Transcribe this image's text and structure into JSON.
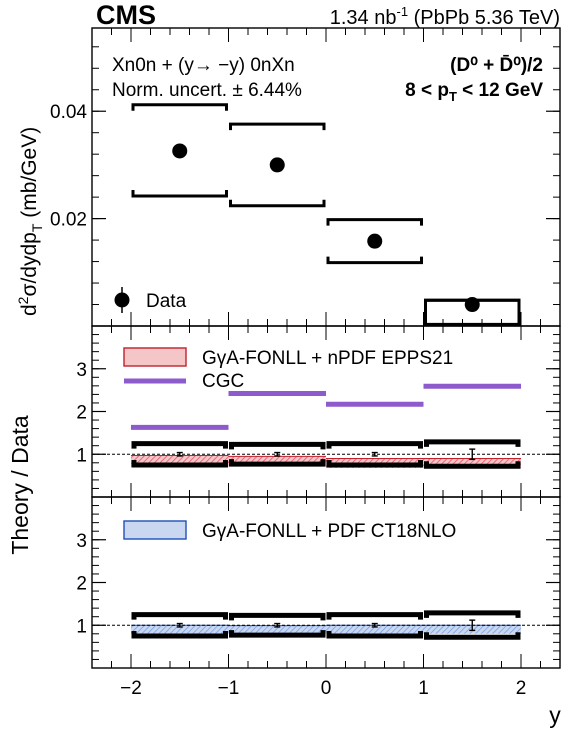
{
  "header": {
    "experiment": "CMS",
    "lumi": "1.34 nb",
    "lumi_exp": "-1",
    "system": " (PbPb 5.36 TeV)"
  },
  "labels": {
    "process": "Xn0n + (y→ −y) 0nXn",
    "norm_uncert": "Norm. uncert. ± 6.44%",
    "species": "(D⁰ + D̄⁰)/2",
    "pt_range_pre": "8 < p",
    "pt_range_sub": "T",
    "pt_range_post": " < 12 GeV",
    "data_legend": "Data",
    "theory_data": "Theory / Data",
    "xlabel": "y",
    "ylabel_top": "d²σ/dydp_T (mb/GeV)"
  },
  "colors": {
    "epps21_fill": "#f4c6c8",
    "epps21_line": "#c0212b",
    "epps21_hatch": "#e8506a",
    "cgc_line": "#8e5bcc",
    "ct18_fill": "#c9d7f0",
    "ct18_line": "#1f4fb8",
    "ct18_hatch": "#6f99e0"
  },
  "chart_data": [
    {
      "type": "scatter",
      "panel": "top",
      "xlim": [
        -2.4,
        2.4
      ],
      "ylim": [
        0,
        0.0555
      ],
      "yticks": [
        0.02,
        0.04
      ],
      "ytick_labels": [
        "0.02",
        "0.04"
      ],
      "xlabel": "y",
      "ylabel": "d²σ/dydp_T (mb/GeV)",
      "series": [
        {
          "name": "Data",
          "bins": [
            [
              -2,
              -1
            ],
            [
              -1,
              0
            ],
            [
              0,
              1
            ],
            [
              1,
              2
            ]
          ],
          "x": [
            -1.5,
            -0.5,
            0.5,
            1.5
          ],
          "y": [
            0.0326,
            0.03,
            0.0158,
            0.004
          ],
          "syst_low": [
            0.0242,
            0.0224,
            0.0118,
            0.0003
          ],
          "syst_high": [
            0.0412,
            0.0376,
            0.0198,
            0.0048
          ]
        }
      ]
    },
    {
      "type": "line",
      "panel": "middle",
      "xlim": [
        -2.4,
        2.4
      ],
      "ylim": [
        0,
        4.0
      ],
      "yticks": [
        1,
        2,
        3
      ],
      "ytick_labels": [
        "1",
        "2",
        "3"
      ],
      "ylabel": "Theory / Data",
      "bins": [
        [
          -2,
          -1
        ],
        [
          -1,
          0
        ],
        [
          0,
          1
        ],
        [
          1,
          2
        ]
      ],
      "series": [
        {
          "name": "GγA-FONLL + nPDF EPPS21",
          "kind": "band",
          "low": [
            0.7,
            0.72,
            0.68,
            0.67
          ],
          "high": [
            0.97,
            0.95,
            0.9,
            0.9
          ]
        },
        {
          "name": "CGC",
          "kind": "line",
          "values": [
            1.63,
            2.42,
            2.17,
            2.59
          ]
        },
        {
          "name": "Data uncertainty",
          "kind": "frame",
          "low": [
            0.75,
            0.77,
            0.75,
            0.72
          ],
          "high": [
            1.25,
            1.23,
            1.25,
            1.29
          ]
        },
        {
          "name": "Data stat",
          "kind": "errorbar",
          "x": [
            -1.5,
            -0.5,
            0.5,
            1.5
          ],
          "y": [
            1,
            1,
            1,
            1
          ],
          "err": [
            0.04,
            0.04,
            0.04,
            0.12
          ]
        }
      ]
    },
    {
      "type": "line",
      "panel": "bottom",
      "xlim": [
        -2.4,
        2.4
      ],
      "ylim": [
        0,
        4.0
      ],
      "yticks": [
        1,
        2,
        3
      ],
      "ytick_labels": [
        "1",
        "2",
        "3"
      ],
      "xticks": [
        -2,
        -1,
        0,
        1,
        2
      ],
      "xtick_labels": [
        "−2",
        "−1",
        "0",
        "1",
        "2"
      ],
      "bins": [
        [
          -2,
          -1
        ],
        [
          -1,
          0
        ],
        [
          0,
          1
        ],
        [
          1,
          2
        ]
      ],
      "series": [
        {
          "name": "GγA-FONLL + PDF CT18NLO",
          "kind": "band",
          "low": [
            0.8,
            0.79,
            0.8,
            0.8
          ],
          "high": [
            1.0,
            0.99,
            1.0,
            1.0
          ]
        },
        {
          "name": "Data uncertainty",
          "kind": "frame",
          "low": [
            0.75,
            0.77,
            0.75,
            0.72
          ],
          "high": [
            1.25,
            1.23,
            1.25,
            1.29
          ]
        },
        {
          "name": "Data stat",
          "kind": "errorbar",
          "x": [
            -1.5,
            -0.5,
            0.5,
            1.5
          ],
          "y": [
            1,
            1,
            1,
            1
          ],
          "err": [
            0.04,
            0.04,
            0.04,
            0.12
          ]
        }
      ]
    }
  ]
}
